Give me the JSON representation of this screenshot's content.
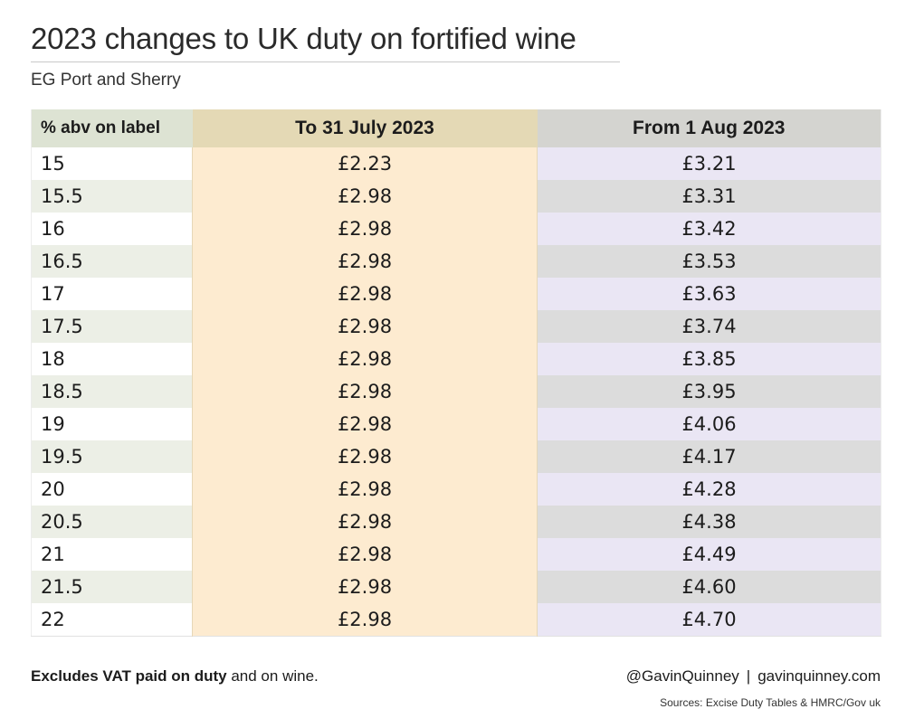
{
  "header": {
    "title": "2023 changes to UK duty on fortified wine",
    "subtitle": "EG Port and Sherry"
  },
  "table": {
    "columns": [
      "% abv on label",
      "To 31 July 2023",
      "From 1 Aug 2023"
    ],
    "rows": [
      {
        "abv": "15",
        "before": "£2.23",
        "after": "£3.21"
      },
      {
        "abv": "15.5",
        "before": "£2.98",
        "after": "£3.31"
      },
      {
        "abv": "16",
        "before": "£2.98",
        "after": "£3.42"
      },
      {
        "abv": "16.5",
        "before": "£2.98",
        "after": "£3.53"
      },
      {
        "abv": "17",
        "before": "£2.98",
        "after": "£3.63"
      },
      {
        "abv": "17.5",
        "before": "£2.98",
        "after": "£3.74"
      },
      {
        "abv": "18",
        "before": "£2.98",
        "after": "£3.85"
      },
      {
        "abv": "18.5",
        "before": "£2.98",
        "after": "£3.95"
      },
      {
        "abv": "19",
        "before": "£2.98",
        "after": "£4.06"
      },
      {
        "abv": "19.5",
        "before": "£2.98",
        "after": "£4.17"
      },
      {
        "abv": "20",
        "before": "£2.98",
        "after": "£4.28"
      },
      {
        "abv": "20.5",
        "before": "£2.98",
        "after": "£4.38"
      },
      {
        "abv": "21",
        "before": "£2.98",
        "after": "£4.49"
      },
      {
        "abv": "21.5",
        "before": "£2.98",
        "after": "£4.60"
      },
      {
        "abv": "22",
        "before": "£2.98",
        "after": "£4.70"
      }
    ]
  },
  "footer": {
    "note_bold": "Excludes VAT paid on duty",
    "note_rest": " and on wine.",
    "handle": "@GavinQuinney",
    "separator": "|",
    "website": "gavinquinney.com",
    "sources": "Sources: Excise Duty Tables & HMRC/Gov uk"
  },
  "colors": {
    "before_column": "#fdebd0",
    "after_column": "#eae6f4",
    "header_before": "#e4d9b5",
    "header_after": "#d4d4d0",
    "header_abv": "#dde3d3"
  }
}
